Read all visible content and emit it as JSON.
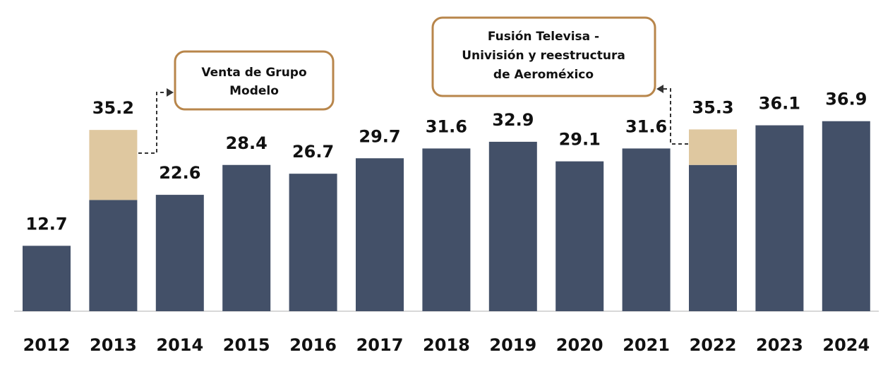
{
  "chart_data": {
    "type": "stacked_bar",
    "categories": [
      "2012",
      "2013",
      "2014",
      "2015",
      "2016",
      "2017",
      "2018",
      "2019",
      "2020",
      "2021",
      "2022",
      "2023",
      "2024"
    ],
    "series": [
      {
        "color": "#435068",
        "values": [
          12.7,
          21.6,
          22.6,
          28.4,
          26.7,
          29.7,
          31.6,
          32.9,
          29.1,
          31.6,
          28.4,
          36.1,
          36.9
        ]
      },
      {
        "color": "#dfc8a0",
        "values": [
          null,
          13.6,
          null,
          null,
          null,
          null,
          null,
          null,
          null,
          null,
          6.9,
          null,
          null
        ]
      }
    ],
    "value_labels": [
      "12.7",
      "35.2",
      "22.6",
      "28.4",
      "26.7",
      "29.7",
      "31.6",
      "32.9",
      "29.1",
      "31.6",
      "35.3",
      "36.1",
      "36.9"
    ],
    "ylim": [
      0,
      37
    ],
    "annotations": [
      {
        "lines": [
          "Venta de Grupo",
          "Modelo"
        ]
      },
      {
        "lines": [
          "Fusión Televisa -",
          "Univisión y reestructura",
          "de Aeroméxico"
        ]
      }
    ]
  }
}
